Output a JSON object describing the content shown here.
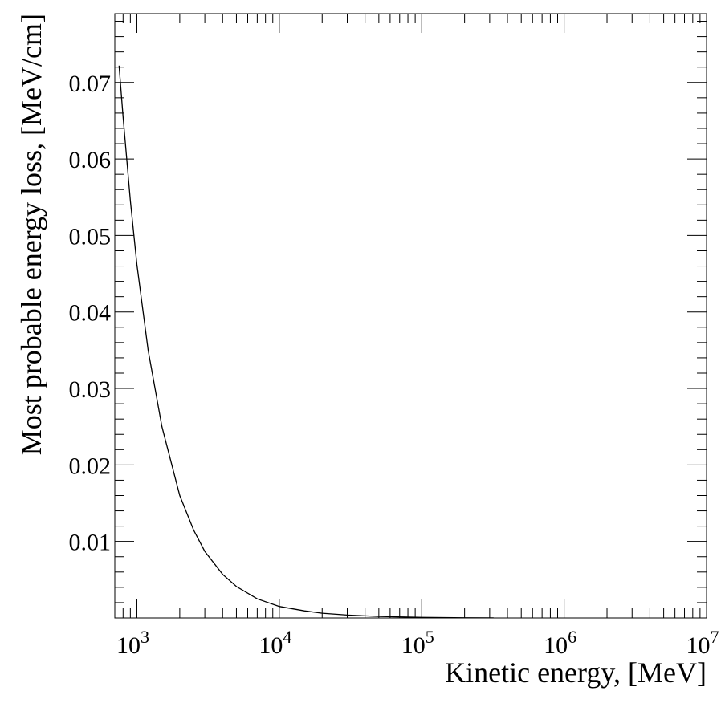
{
  "chart_data": {
    "type": "line",
    "xlabel": "Kinetic energy, [MeV]",
    "ylabel": "Most probable energy loss, [MeV/cm]",
    "xscale": "log",
    "xlim": [
      700,
      10000000
    ],
    "ylim": [
      0,
      0.079
    ],
    "grid": false,
    "x_ticks": [
      {
        "value": 1000,
        "base": "10",
        "exp": "3"
      },
      {
        "value": 10000,
        "base": "10",
        "exp": "4"
      },
      {
        "value": 100000,
        "base": "10",
        "exp": "5"
      },
      {
        "value": 1000000,
        "base": "10",
        "exp": "6"
      },
      {
        "value": 10000000,
        "base": "10",
        "exp": "7"
      }
    ],
    "y_ticks": [
      {
        "value": 0.01,
        "label": "0.01"
      },
      {
        "value": 0.02,
        "label": "0.02"
      },
      {
        "value": 0.03,
        "label": "0.03"
      },
      {
        "value": 0.04,
        "label": "0.04"
      },
      {
        "value": 0.05,
        "label": "0.05"
      },
      {
        "value": 0.06,
        "label": "0.06"
      },
      {
        "value": 0.07,
        "label": "0.07"
      }
    ],
    "series": [
      {
        "color": "#000000",
        "points": [
          [
            750,
            0.0722
          ],
          [
            800,
            0.0655
          ],
          [
            900,
            0.0545
          ],
          [
            1000,
            0.0462
          ],
          [
            1200,
            0.035
          ],
          [
            1500,
            0.025
          ],
          [
            2000,
            0.016
          ],
          [
            2500,
            0.0115
          ],
          [
            3000,
            0.0087
          ],
          [
            4000,
            0.0057
          ],
          [
            5000,
            0.0041
          ],
          [
            7000,
            0.0025
          ],
          [
            10000,
            0.0015
          ],
          [
            15000,
            0.00092
          ],
          [
            20000,
            0.00062
          ],
          [
            30000,
            0.00038
          ],
          [
            50000,
            0.0002
          ],
          [
            100000,
            7e-05
          ],
          [
            200000,
            2e-05
          ],
          [
            320000,
            1e-05
          ]
        ]
      }
    ]
  }
}
